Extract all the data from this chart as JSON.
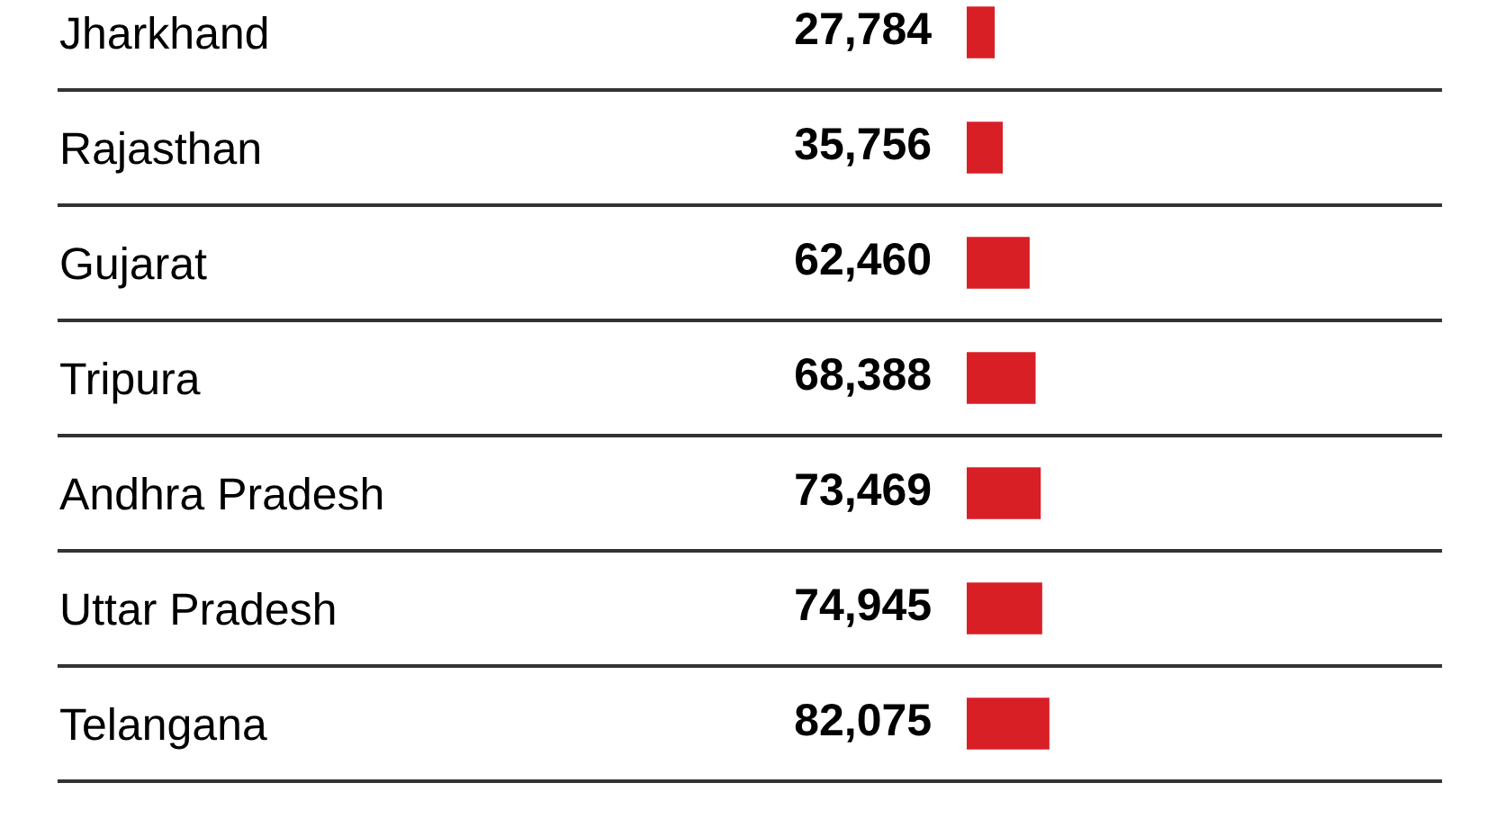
{
  "chart_data": {
    "type": "bar",
    "orientation": "horizontal",
    "categories": [
      "Jharkhand",
      "Rajasthan",
      "Gujarat",
      "Tripura",
      "Andhra Pradesh",
      "Uttar Pradesh",
      "Telangana"
    ],
    "values": [
      27784,
      35756,
      62460,
      68388,
      73469,
      74945,
      82075
    ],
    "value_labels": [
      "27,784",
      "35,756",
      "62,460",
      "68,388",
      "73,469",
      "74,945",
      "82,075"
    ],
    "color": "#d91f26",
    "xlim": [
      0,
      470000
    ],
    "tick_labels": "y",
    "grid": false,
    "legend": false
  }
}
